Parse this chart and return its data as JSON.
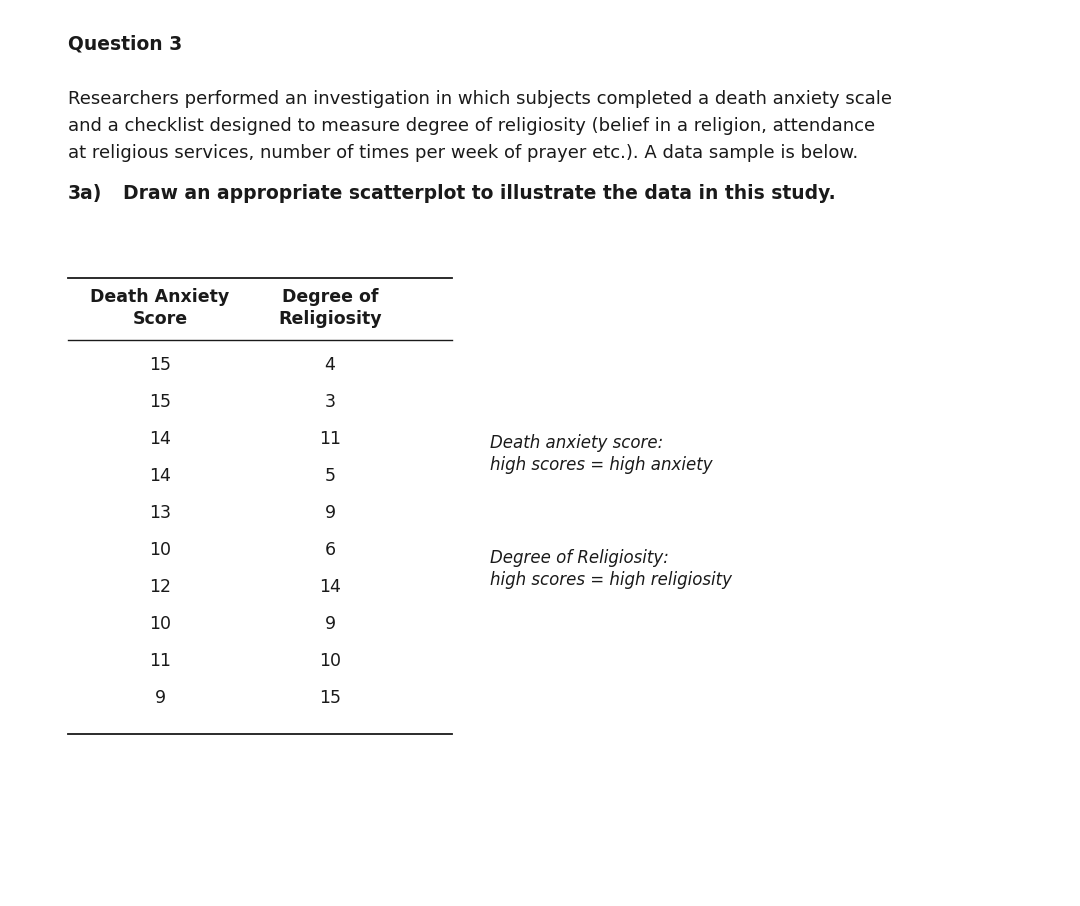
{
  "title": "Question 3",
  "paragraph_lines": [
    "Researchers performed an investigation in which subjects completed a death anxiety scale",
    "and a checklist designed to measure degree of religiosity (belief in a religion, attendance",
    "at religious services, number of times per week of prayer etc.). A data sample is below."
  ],
  "question_3a_prefix": "3a)",
  "question_3a_text": "  Draw an appropriate scatterplot to illustrate the data in this study.",
  "col1_header_line1": "Death Anxiety",
  "col1_header_line2": "Score",
  "col2_header_line1": "Degree of",
  "col2_header_line2": "Religiosity",
  "death_anxiety": [
    15,
    15,
    14,
    14,
    13,
    10,
    12,
    10,
    11,
    9
  ],
  "religiosity": [
    4,
    3,
    11,
    5,
    9,
    6,
    14,
    9,
    10,
    15
  ],
  "note1_line1": "Death anxiety score:",
  "note1_line2": "high scores = high anxiety",
  "note2_line1": "Degree of Religiosity:",
  "note2_line2": "high scores = high religiosity",
  "bg_color": "#ffffff",
  "text_color": "#1a1a1a",
  "font_size_title": 13.5,
  "font_size_body": 13.0,
  "font_size_table": 12.5,
  "font_size_note": 12.0,
  "fig_width": 10.8,
  "fig_height": 9.06,
  "dpi": 100
}
